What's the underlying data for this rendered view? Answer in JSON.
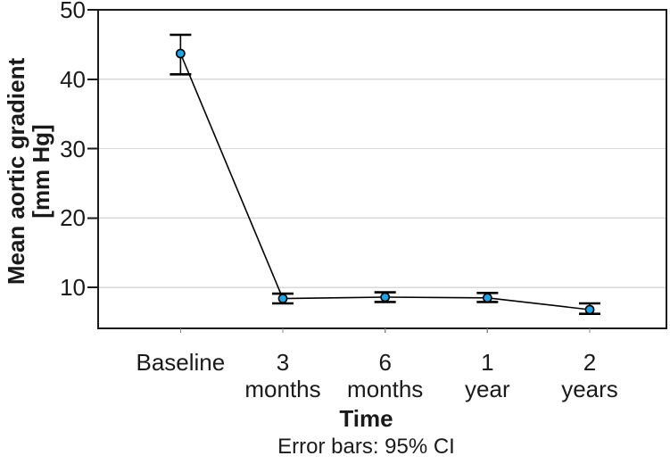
{
  "chart_data": {
    "type": "line",
    "title": "",
    "categories": [
      "Baseline",
      "3 months",
      "6 months",
      "1 year",
      "2 years"
    ],
    "series": [
      {
        "name": "Mean aortic gradient",
        "values": [
          43.7,
          8.4,
          8.6,
          8.5,
          6.8
        ],
        "ci_low": [
          40.7,
          7.7,
          7.9,
          7.9,
          6.2
        ],
        "ci_high": [
          46.4,
          9.1,
          9.3,
          9.2,
          7.7
        ]
      }
    ],
    "xlabel": "Time",
    "ylabel": "Mean aortic gradient [mm Hg]",
    "ylabel_lines": [
      "Mean aortic gradient",
      "[mm Hg]"
    ],
    "caption": "Error bars: 95% CI",
    "yticks": [
      10,
      20,
      30,
      40,
      50
    ],
    "ylim": [
      4.1,
      50
    ],
    "grid": "horizontal",
    "legend": "none",
    "marker_color": "#1ea5e8",
    "line_color": "#000000",
    "error_bar_color": "#000000",
    "grid_color": "#d8d8d8",
    "frame_color": "#1a1a1a",
    "text_color": "#1a1a1a",
    "background": "#ffffff"
  }
}
